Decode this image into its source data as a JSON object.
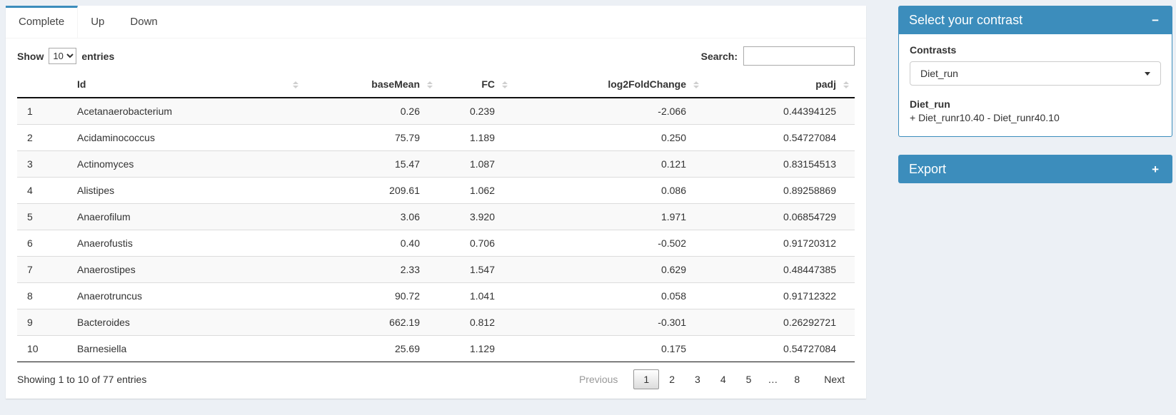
{
  "theme": {
    "accent_blue": "#3c8dbc",
    "page_background": "#ecf0f5",
    "stripe": "#f9f9f9"
  },
  "tabs": {
    "complete": "Complete",
    "up": "Up",
    "down": "Down",
    "active": "Complete"
  },
  "table_controls": {
    "show_label": "Show",
    "page_length": "10",
    "entries_label": "entries",
    "search_label": "Search:",
    "search_value": ""
  },
  "table": {
    "columns": [
      "Id",
      "baseMean",
      "FC",
      "log2FoldChange",
      "padj"
    ],
    "rows": [
      {
        "n": "1",
        "id": "Acetanaerobacterium",
        "baseMean": "0.26",
        "fc": "0.239",
        "log2fc": "-2.066",
        "padj": "0.44394125"
      },
      {
        "n": "2",
        "id": "Acidaminococcus",
        "baseMean": "75.79",
        "fc": "1.189",
        "log2fc": "0.250",
        "padj": "0.54727084"
      },
      {
        "n": "3",
        "id": "Actinomyces",
        "baseMean": "15.47",
        "fc": "1.087",
        "log2fc": "0.121",
        "padj": "0.83154513"
      },
      {
        "n": "4",
        "id": "Alistipes",
        "baseMean": "209.61",
        "fc": "1.062",
        "log2fc": "0.086",
        "padj": "0.89258869"
      },
      {
        "n": "5",
        "id": "Anaerofilum",
        "baseMean": "3.06",
        "fc": "3.920",
        "log2fc": "1.971",
        "padj": "0.06854729"
      },
      {
        "n": "6",
        "id": "Anaerofustis",
        "baseMean": "0.40",
        "fc": "0.706",
        "log2fc": "-0.502",
        "padj": "0.91720312"
      },
      {
        "n": "7",
        "id": "Anaerostipes",
        "baseMean": "2.33",
        "fc": "1.547",
        "log2fc": "0.629",
        "padj": "0.48447385"
      },
      {
        "n": "8",
        "id": "Anaerotruncus",
        "baseMean": "90.72",
        "fc": "1.041",
        "log2fc": "0.058",
        "padj": "0.91712322"
      },
      {
        "n": "9",
        "id": "Bacteroides",
        "baseMean": "662.19",
        "fc": "0.812",
        "log2fc": "-0.301",
        "padj": "0.26292721"
      },
      {
        "n": "10",
        "id": "Barnesiella",
        "baseMean": "25.69",
        "fc": "1.129",
        "log2fc": "0.175",
        "padj": "0.54727084"
      }
    ]
  },
  "footer": {
    "info": "Showing 1 to 10 of 77 entries",
    "pagination": {
      "previous": "Previous",
      "pages": [
        "1",
        "2",
        "3",
        "4",
        "5",
        "…",
        "8"
      ],
      "current": "1",
      "next": "Next"
    }
  },
  "contrast_box": {
    "title": "Select your contrast",
    "collapse_icon": "−",
    "contrasts_label": "Contrasts",
    "selected_contrast": "Diet_run",
    "contrast_name": "Diet_run",
    "contrast_formula": "+ Diet_runr10.40 - Diet_runr40.10"
  },
  "export_box": {
    "title": "Export",
    "expand_icon": "+"
  }
}
